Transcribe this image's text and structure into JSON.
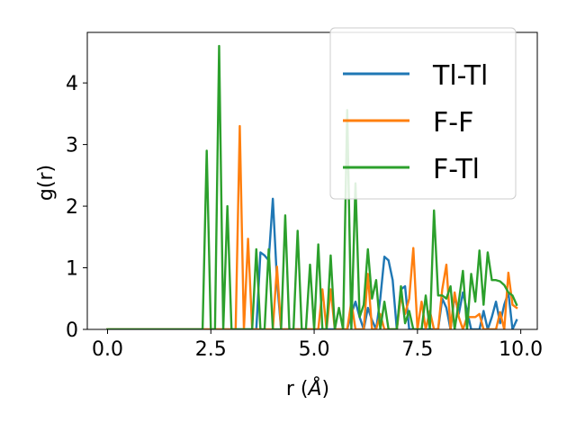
{
  "chart_data": {
    "type": "line",
    "xlabel": "r (Å)",
    "ylabel": "g(r)",
    "xlim": [
      -0.49,
      10.4
    ],
    "ylim": [
      0,
      4.82
    ],
    "xticks": [
      "0.0",
      "2.5",
      "5.0",
      "7.5",
      "10.0"
    ],
    "yticks": [
      "0",
      "1",
      "2",
      "3",
      "4"
    ],
    "grid": false,
    "legend_position": "top-right",
    "series": [
      {
        "name": "Tl-Tl",
        "color": "#1f77b4",
        "points": [
          [
            0,
            0
          ],
          [
            3.5,
            0
          ],
          [
            3.6,
            0
          ],
          [
            3.7,
            1.25
          ],
          [
            3.8,
            1.2
          ],
          [
            3.9,
            1.12
          ],
          [
            4.0,
            2.12
          ],
          [
            4.1,
            0.8
          ],
          [
            4.2,
            0
          ],
          [
            5.8,
            0
          ],
          [
            5.9,
            0.25
          ],
          [
            6.0,
            0.45
          ],
          [
            6.1,
            0.2
          ],
          [
            6.2,
            0
          ],
          [
            6.3,
            0.35
          ],
          [
            6.4,
            0.15
          ],
          [
            6.5,
            0
          ],
          [
            6.6,
            0.5
          ],
          [
            6.7,
            1.18
          ],
          [
            6.8,
            1.12
          ],
          [
            6.9,
            0.8
          ],
          [
            7.0,
            0
          ],
          [
            7.1,
            0.65
          ],
          [
            7.2,
            0.7
          ],
          [
            7.3,
            0
          ],
          [
            8.0,
            0
          ],
          [
            8.1,
            0.5
          ],
          [
            8.2,
            0.35
          ],
          [
            8.3,
            0
          ],
          [
            8.4,
            0.55
          ],
          [
            8.5,
            0.25
          ],
          [
            8.6,
            0.6
          ],
          [
            8.7,
            0.3
          ],
          [
            8.8,
            0
          ],
          [
            9.0,
            0
          ],
          [
            9.1,
            0.3
          ],
          [
            9.2,
            0
          ],
          [
            9.3,
            0.2
          ],
          [
            9.4,
            0.45
          ],
          [
            9.5,
            0.1
          ],
          [
            9.6,
            0.4
          ],
          [
            9.7,
            0.6
          ],
          [
            9.8,
            0
          ],
          [
            9.9,
            0.15
          ]
        ]
      },
      {
        "name": "F-F",
        "color": "#ff7f0e",
        "points": [
          [
            0,
            0
          ],
          [
            3.1,
            0
          ],
          [
            3.2,
            3.3
          ],
          [
            3.3,
            0
          ],
          [
            3.4,
            1.47
          ],
          [
            3.5,
            0
          ],
          [
            4.0,
            0
          ],
          [
            4.1,
            1.02
          ],
          [
            4.2,
            0
          ],
          [
            5.1,
            0
          ],
          [
            5.2,
            0.65
          ],
          [
            5.3,
            0
          ],
          [
            5.4,
            0.65
          ],
          [
            5.5,
            0
          ],
          [
            5.8,
            0
          ],
          [
            5.9,
            0.45
          ],
          [
            6.0,
            0
          ],
          [
            6.2,
            0
          ],
          [
            6.3,
            0.9
          ],
          [
            6.4,
            0
          ],
          [
            6.5,
            0
          ],
          [
            6.6,
            0.25
          ],
          [
            6.7,
            0
          ],
          [
            7.0,
            0
          ],
          [
            7.1,
            0.55
          ],
          [
            7.2,
            0.25
          ],
          [
            7.3,
            0.5
          ],
          [
            7.4,
            1.32
          ],
          [
            7.5,
            0
          ],
          [
            7.6,
            0.45
          ],
          [
            7.7,
            0
          ],
          [
            7.8,
            0.3
          ],
          [
            7.9,
            0
          ],
          [
            8.0,
            0
          ],
          [
            8.1,
            0.65
          ],
          [
            8.2,
            1.05
          ],
          [
            8.3,
            0
          ],
          [
            8.4,
            0.6
          ],
          [
            8.5,
            0.2
          ],
          [
            8.6,
            0
          ],
          [
            8.7,
            0.2
          ],
          [
            8.8,
            0.2
          ],
          [
            8.9,
            0.2
          ],
          [
            9.0,
            0.25
          ],
          [
            9.1,
            0
          ],
          [
            9.4,
            0
          ],
          [
            9.5,
            0.28
          ],
          [
            9.6,
            0
          ],
          [
            9.7,
            0.92
          ],
          [
            9.8,
            0.4
          ],
          [
            9.9,
            0.35
          ]
        ]
      },
      {
        "name": "F-Tl",
        "color": "#2ca02c",
        "points": [
          [
            0,
            0
          ],
          [
            2.3,
            0
          ],
          [
            2.4,
            2.9
          ],
          [
            2.5,
            0
          ],
          [
            2.6,
            0
          ],
          [
            2.7,
            4.6
          ],
          [
            2.8,
            0
          ],
          [
            2.9,
            2.0
          ],
          [
            3.0,
            0
          ],
          [
            3.5,
            0
          ],
          [
            3.6,
            1.3
          ],
          [
            3.7,
            0
          ],
          [
            3.8,
            0
          ],
          [
            3.9,
            1.3
          ],
          [
            4.0,
            0
          ],
          [
            4.2,
            0
          ],
          [
            4.3,
            1.85
          ],
          [
            4.4,
            0
          ],
          [
            4.5,
            0
          ],
          [
            4.6,
            1.6
          ],
          [
            4.7,
            0
          ],
          [
            4.8,
            0
          ],
          [
            4.9,
            1.05
          ],
          [
            5.0,
            0
          ],
          [
            5.1,
            1.38
          ],
          [
            5.2,
            0
          ],
          [
            5.3,
            0
          ],
          [
            5.4,
            1.2
          ],
          [
            5.5,
            0
          ],
          [
            5.6,
            0.35
          ],
          [
            5.7,
            0
          ],
          [
            5.8,
            3.56
          ],
          [
            5.9,
            0
          ],
          [
            6.0,
            2.37
          ],
          [
            6.1,
            0.2
          ],
          [
            6.2,
            0.4
          ],
          [
            6.3,
            1.3
          ],
          [
            6.4,
            0.5
          ],
          [
            6.5,
            0.8
          ],
          [
            6.6,
            0
          ],
          [
            6.7,
            0.45
          ],
          [
            6.8,
            0
          ],
          [
            7.0,
            0
          ],
          [
            7.1,
            0.7
          ],
          [
            7.2,
            0.1
          ],
          [
            7.3,
            0.3
          ],
          [
            7.4,
            0
          ],
          [
            7.6,
            0
          ],
          [
            7.7,
            0.55
          ],
          [
            7.8,
            0
          ],
          [
            7.9,
            1.93
          ],
          [
            8.0,
            0.55
          ],
          [
            8.1,
            0.55
          ],
          [
            8.2,
            0.5
          ],
          [
            8.3,
            0.7
          ],
          [
            8.4,
            0
          ],
          [
            8.5,
            0.45
          ],
          [
            8.6,
            0.95
          ],
          [
            8.7,
            0
          ],
          [
            8.8,
            0.9
          ],
          [
            8.9,
            0.45
          ],
          [
            9.0,
            1.28
          ],
          [
            9.1,
            0.4
          ],
          [
            9.2,
            1.25
          ],
          [
            9.3,
            0.8
          ],
          [
            9.4,
            0.8
          ],
          [
            9.5,
            0.78
          ],
          [
            9.6,
            0.72
          ],
          [
            9.7,
            0.6
          ],
          [
            9.8,
            0.55
          ],
          [
            9.9,
            0.4
          ]
        ]
      }
    ]
  }
}
